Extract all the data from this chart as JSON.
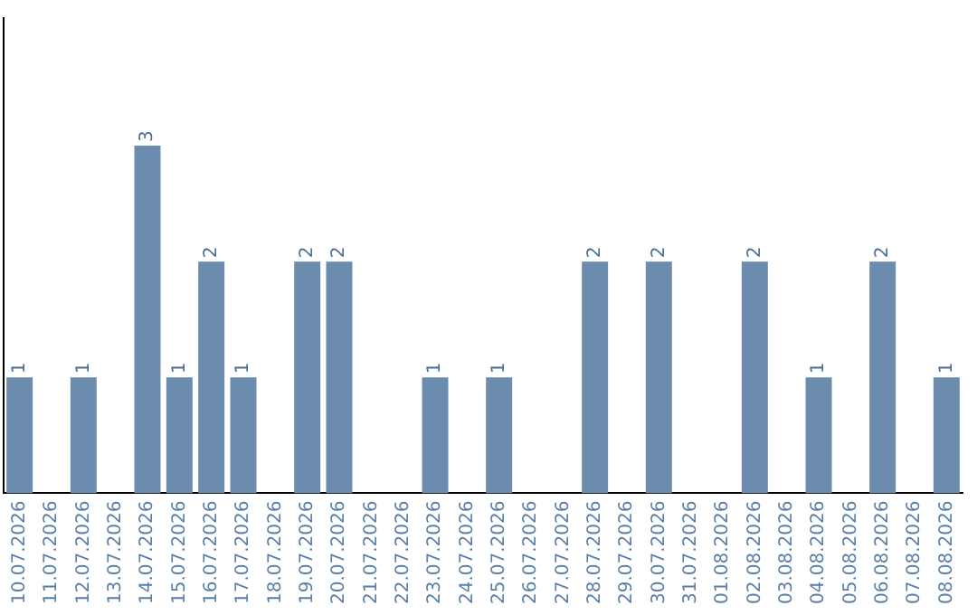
{
  "chart_data": {
    "type": "bar",
    "categories": [
      "10.07.2026",
      "11.07.2026",
      "12.07.2026",
      "13.07.2026",
      "14.07.2026",
      "15.07.2026",
      "16.07.2026",
      "17.07.2026",
      "18.07.2026",
      "19.07.2026",
      "20.07.2026",
      "21.07.2026",
      "22.07.2026",
      "23.07.2026",
      "24.07.2026",
      "25.07.2026",
      "26.07.2026",
      "27.07.2026",
      "28.07.2026",
      "29.07.2026",
      "30.07.2026",
      "31.07.2026",
      "01.08.2026",
      "02.08.2026",
      "03.08.2026",
      "04.08.2026",
      "05.08.2026",
      "06.08.2026",
      "07.08.2026",
      "08.08.2026"
    ],
    "values": [
      1,
      0,
      1,
      0,
      3,
      1,
      2,
      1,
      0,
      2,
      2,
      0,
      0,
      1,
      0,
      1,
      0,
      0,
      2,
      0,
      2,
      0,
      0,
      2,
      0,
      1,
      0,
      2,
      0,
      1
    ],
    "value_labels": [
      "1",
      null,
      "1",
      null,
      "3",
      "1",
      "2",
      "1",
      null,
      "2",
      "2",
      null,
      null,
      "1",
      null,
      "1",
      null,
      null,
      "2",
      null,
      "2",
      null,
      null,
      "2",
      null,
      "1",
      null,
      "2",
      null,
      "1"
    ],
    "color": "#6b8cae",
    "ylim": [
      0,
      4.1
    ],
    "grid": false,
    "legend": false,
    "tick_labels": "x"
  }
}
